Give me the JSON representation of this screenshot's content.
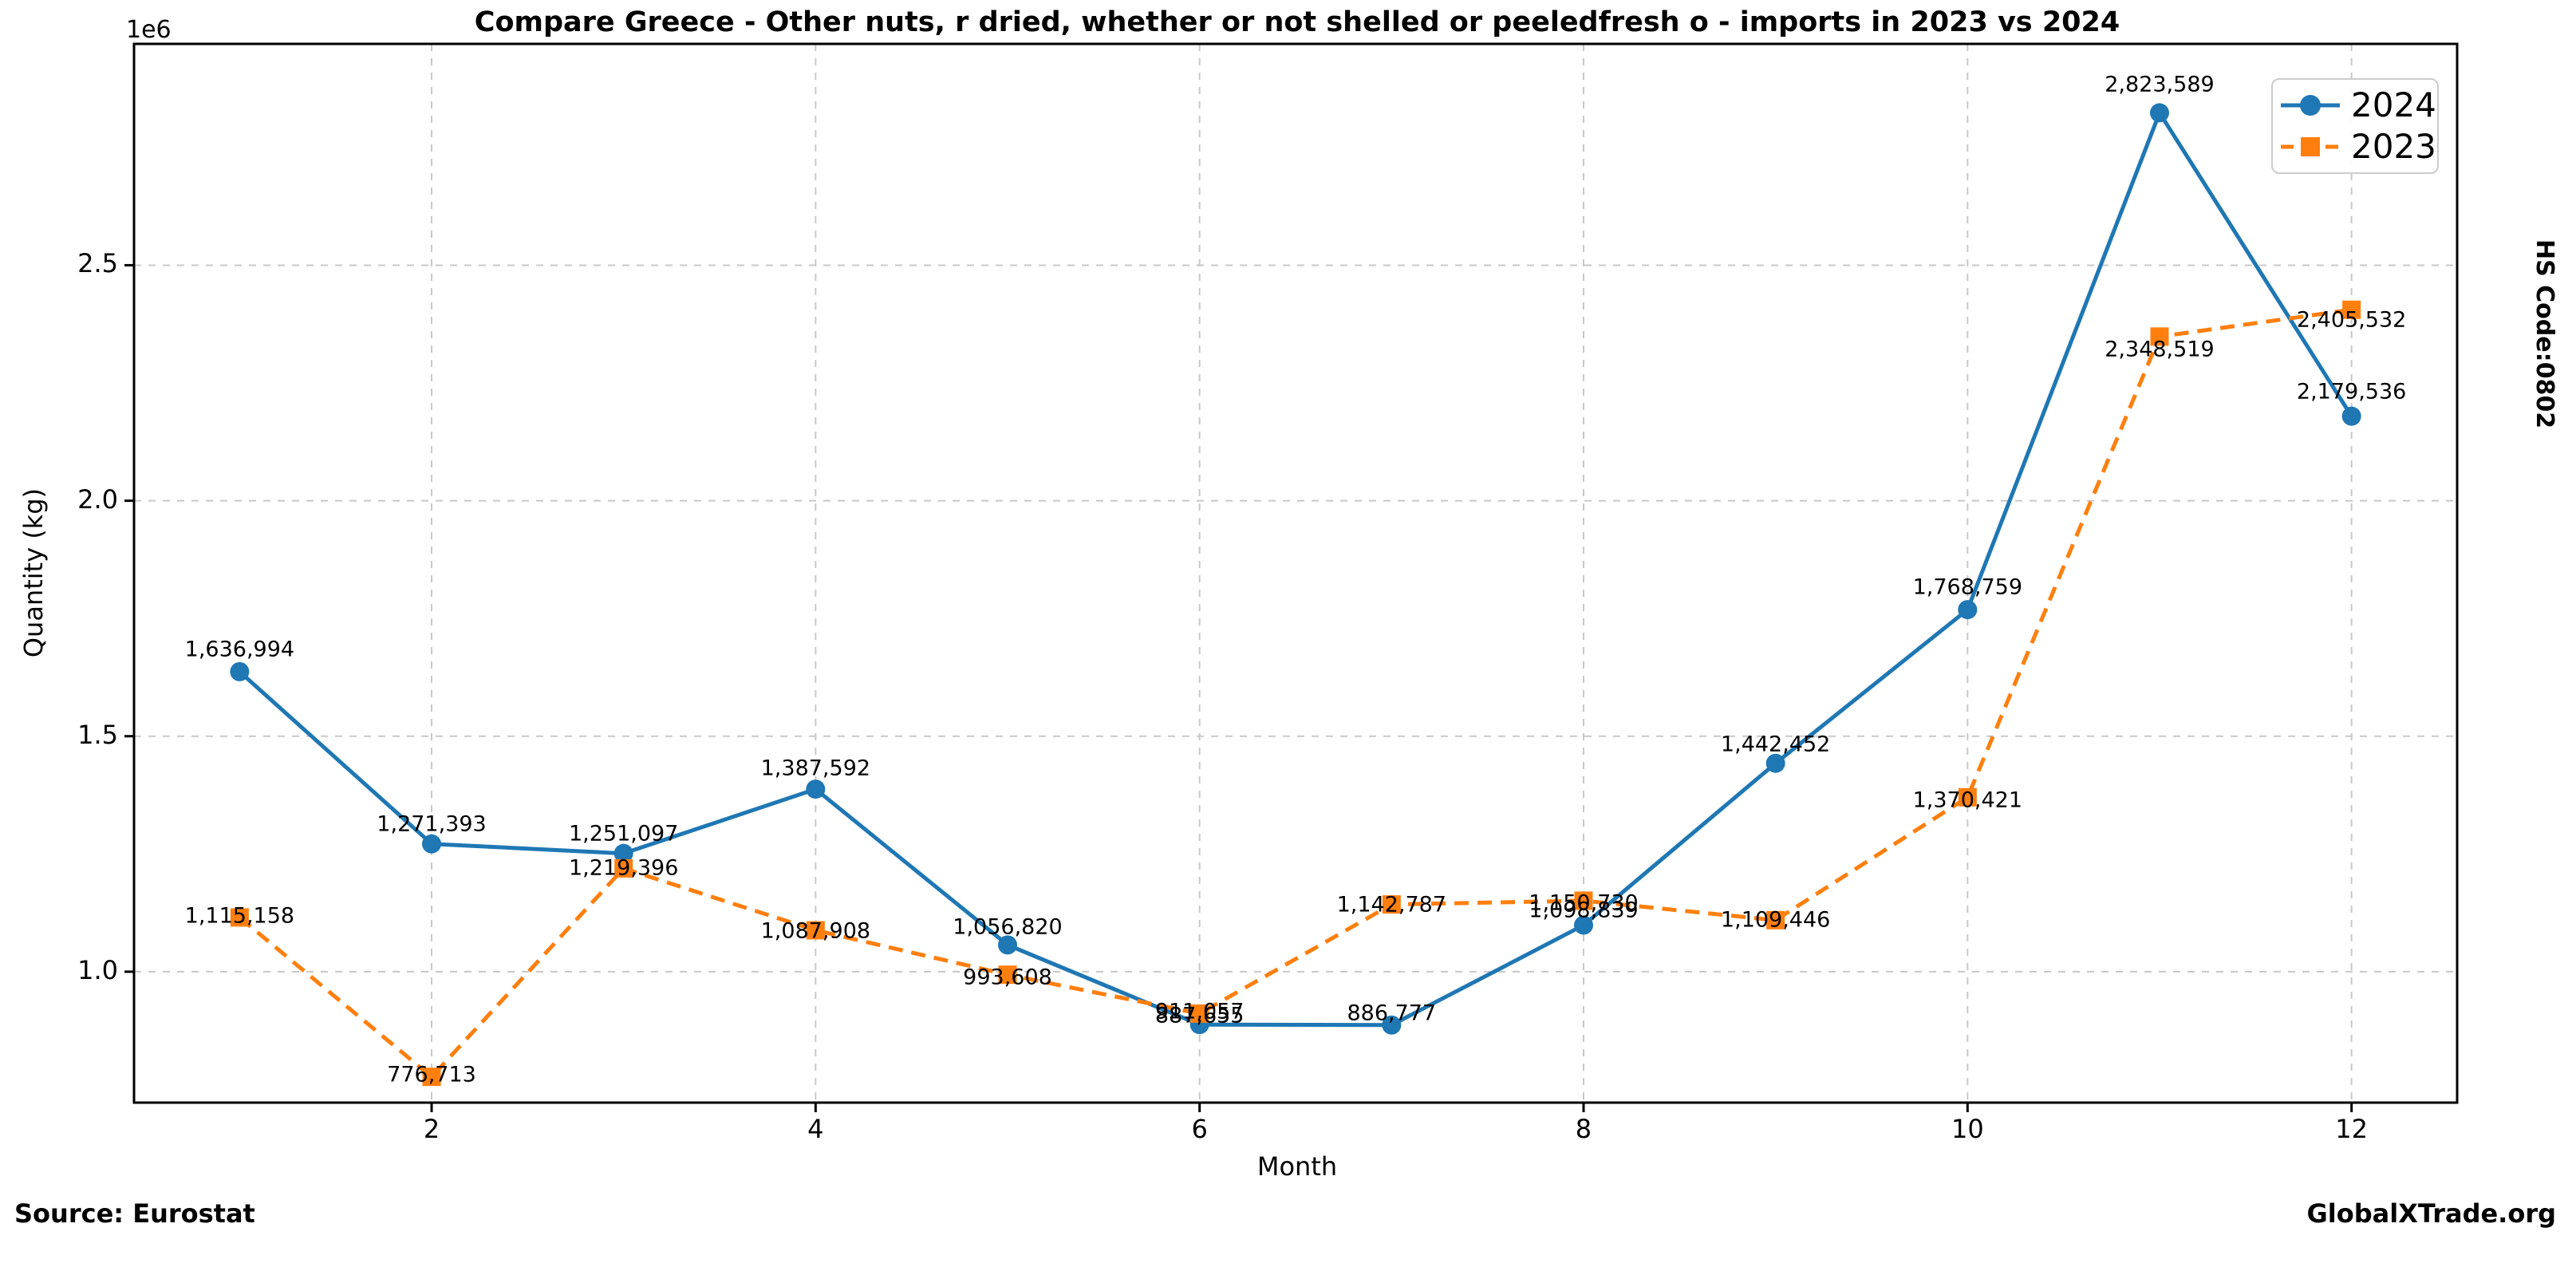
{
  "title": "Compare Greece - Other nuts, r dried, whether or not shelled or peeledfresh o - imports in 2023 vs 2024",
  "footer": {
    "source": "Source: Eurostat",
    "brand": "GlobalXTrade.org"
  },
  "right_label": "HS Code:0802",
  "chart_data": {
    "type": "line",
    "title": "Compare Greece - Other nuts, r dried, whether or not shelled or peeledfresh o - imports in 2023 vs 2024",
    "xlabel": "Month",
    "ylabel": "Quantity (kg)",
    "offset_label": "1e6",
    "x": [
      1,
      2,
      3,
      4,
      5,
      6,
      7,
      8,
      9,
      10,
      11,
      12
    ],
    "x_tick_values": [
      2,
      4,
      6,
      8,
      10,
      12
    ],
    "x_tick_labels": [
      "2",
      "4",
      "6",
      "8",
      "10",
      "12"
    ],
    "y_tick_values": [
      1000000,
      1500000,
      2000000,
      2500000
    ],
    "y_tick_labels": [
      "1.0",
      "1.5",
      "2.0",
      "2.5"
    ],
    "xlim": [
      0.45,
      12.55
    ],
    "ylim": [
      722000,
      2970000
    ],
    "grid": true,
    "legend_position": "upper right",
    "colors": {
      "s2024": "#1f77b4",
      "s2023": "#ff7f0e",
      "grid": "#c8c8c8",
      "spine": "#000000"
    },
    "series": [
      {
        "name": "2024",
        "color": "#1f77b4",
        "marker": "circle",
        "linestyle": "solid",
        "values": [
          1636994,
          1271393,
          1251097,
          1387592,
          1056820,
          887655,
          886777,
          1098839,
          1442452,
          1768759,
          2823589,
          2179536
        ],
        "labels": [
          "1,636,994",
          "1,271,393",
          "1,251,097",
          "1,387,592",
          "1,056,820",
          "887,655",
          "886,777",
          "1,098,839",
          "1,442,452",
          "1,768,759",
          "2,823,589",
          "2,179,536"
        ]
      },
      {
        "name": "2023",
        "color": "#ff7f0e",
        "marker": "square",
        "linestyle": "dashed",
        "values": [
          1115158,
          776713,
          1219396,
          1087908,
          993608,
          911057,
          1142787,
          1150730,
          1109446,
          1370421,
          2348519,
          2405532
        ],
        "labels": [
          "1,115,158",
          "776,713",
          "1,219,396",
          "1,087,908",
          "993,608",
          "911,057",
          "1,142,787",
          "1,150,730",
          "1,109,446",
          "1,370,421",
          "2,348,519",
          "2,405,532"
        ]
      }
    ]
  }
}
